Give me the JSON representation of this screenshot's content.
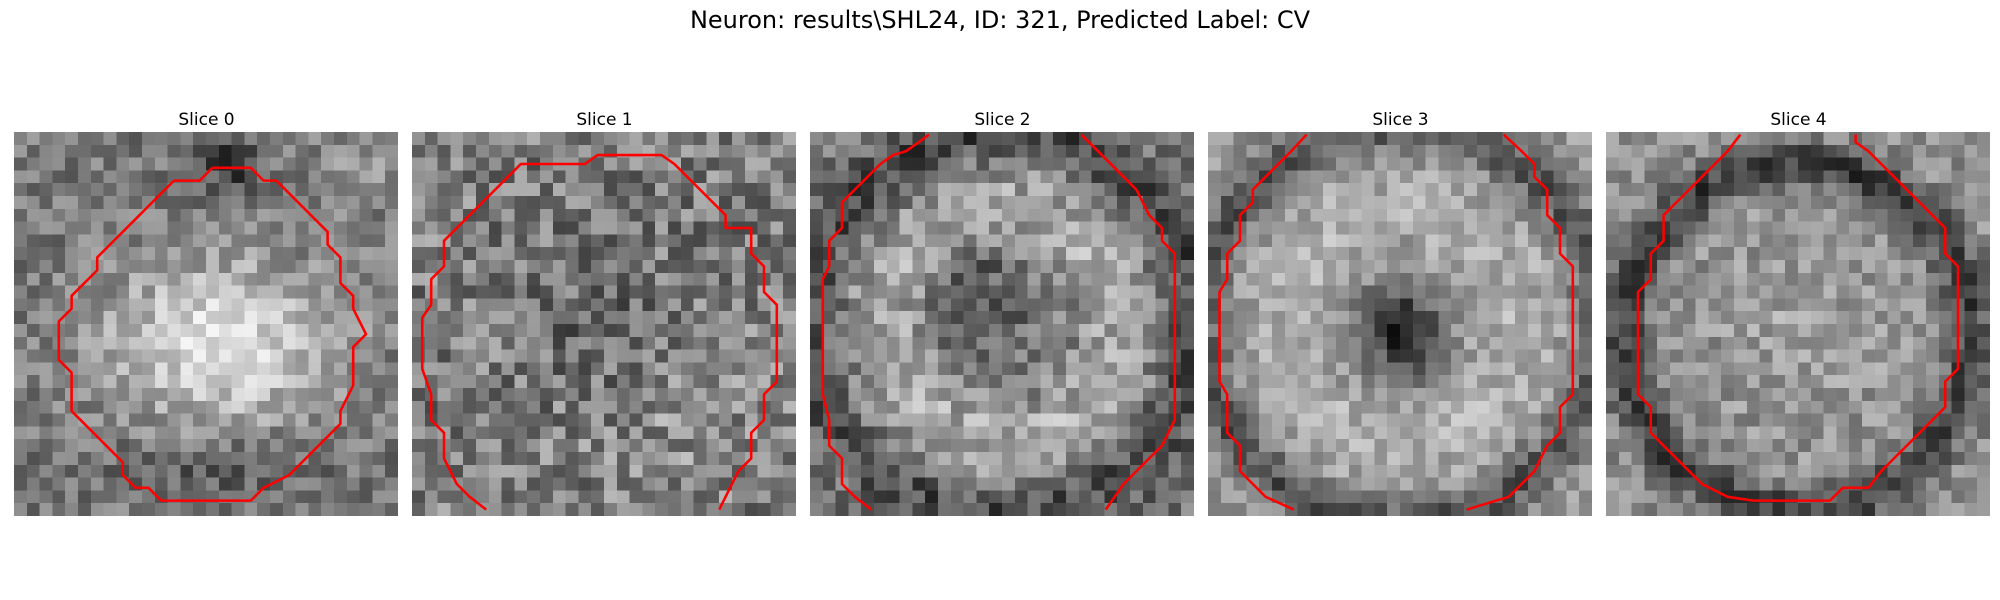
{
  "figure": {
    "title": "Neuron: results\\SHL24, ID: 321, Predicted Label: CV"
  },
  "colors": {
    "contour": "#ff0000",
    "background": "#ffffff"
  },
  "panels": [
    {
      "title": "Slice 0"
    },
    {
      "title": "Slice 1"
    },
    {
      "title": "Slice 2"
    },
    {
      "title": "Slice 3"
    },
    {
      "title": "Slice 4"
    }
  ]
}
